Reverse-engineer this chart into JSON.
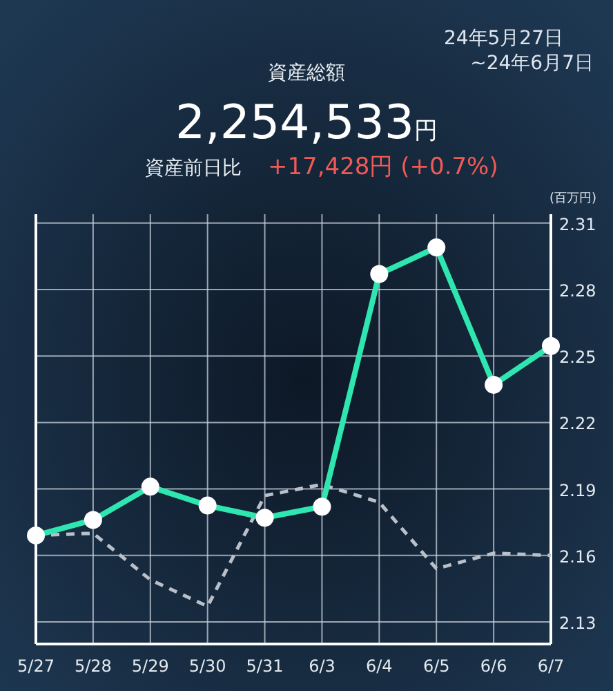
{
  "chart_data": {
    "type": "line",
    "title": "資産総額",
    "ylabel": "(百万円)",
    "annotations": [
      "24年5月27日",
      "~24年6月7日",
      "2,254,533円",
      "資産前日比",
      "+17,428円 (+0.7%)"
    ],
    "categories": [
      "5/27",
      "5/28",
      "5/29",
      "5/30",
      "5/31",
      "6/3",
      "6/4",
      "6/5",
      "6/6",
      "6/7"
    ],
    "series": [
      {
        "color": "#b9c0ca",
        "line_style": "dashed",
        "marker": "none",
        "values": [
          2.169,
          2.17,
          2.149,
          2.137,
          2.187,
          2.192,
          2.184,
          2.154,
          2.161,
          2.16
        ]
      },
      {
        "color": "#2fe6b1",
        "line_style": "solid",
        "marker": "circle",
        "values": [
          2.169,
          2.176,
          2.191,
          2.1825,
          2.177,
          2.182,
          2.287,
          2.299,
          2.237,
          2.2545
        ]
      }
    ],
    "ylim": [
      2.12,
      2.314
    ],
    "yticks": [
      2.13,
      2.16,
      2.19,
      2.22,
      2.25,
      2.28,
      2.31
    ],
    "grid": true
  }
}
